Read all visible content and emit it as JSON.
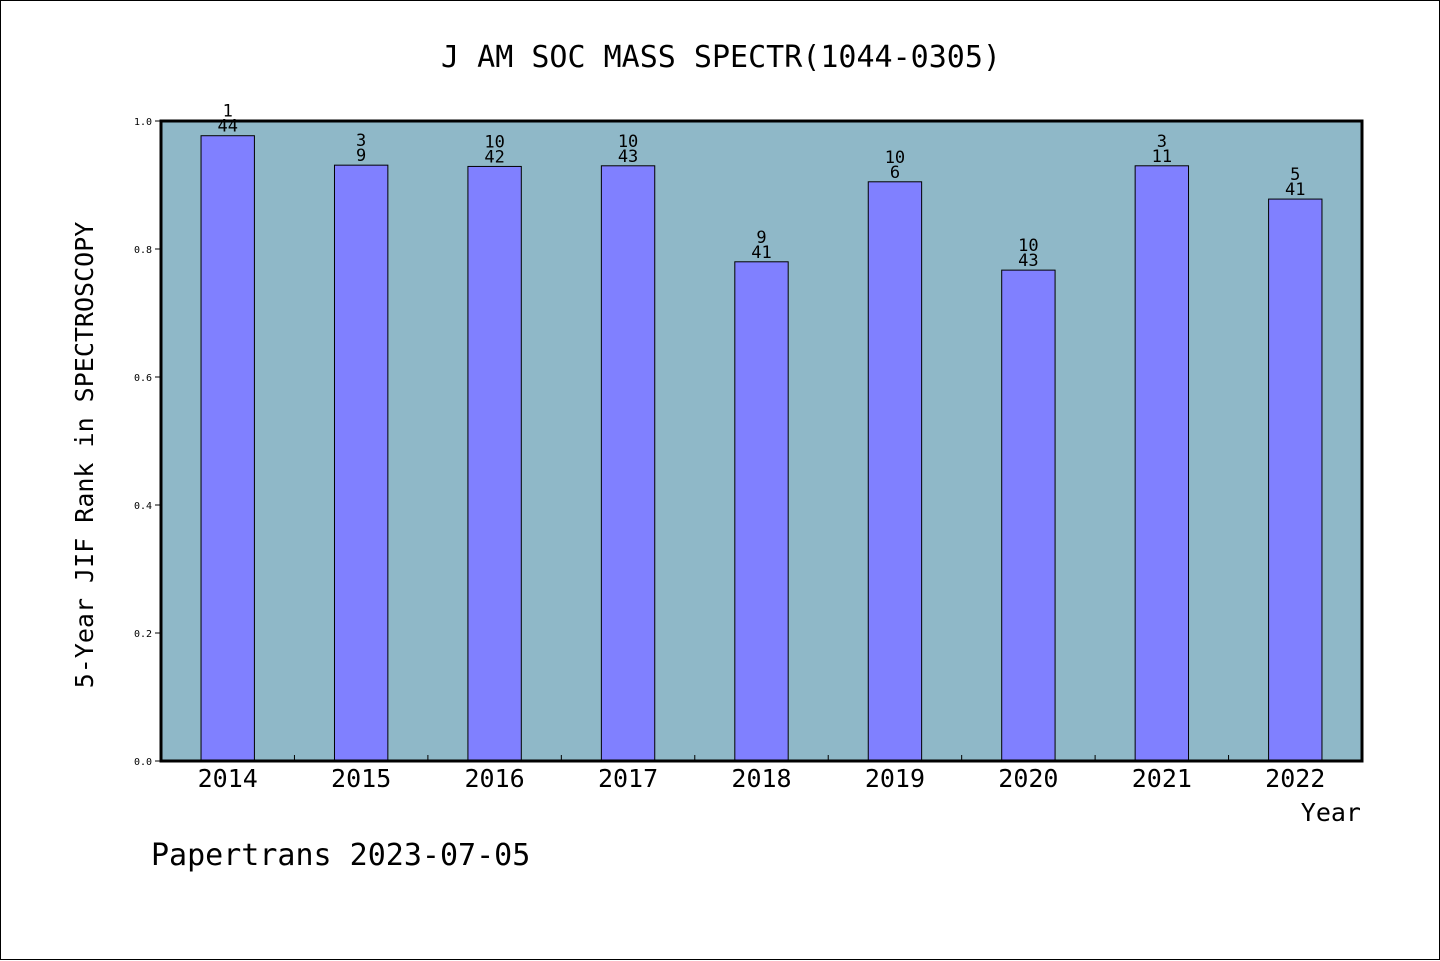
{
  "chart_data": {
    "type": "bar",
    "title": "J AM SOC MASS SPECTR(1044-0305)",
    "xlabel": "Year",
    "ylabel": "5-Year JIF Rank in SPECTROSCOPY",
    "footer": "Papertrans 2023-07-05",
    "categories": [
      "2014",
      "2015",
      "2016",
      "2017",
      "2018",
      "2019",
      "2020",
      "2021",
      "2022"
    ],
    "values": [
      0.977,
      0.931,
      0.929,
      0.93,
      0.78,
      0.905,
      0.767,
      0.93,
      0.878
    ],
    "rank_labels": [
      "1",
      "3",
      "10",
      "10",
      "9",
      "10",
      "10",
      "3",
      "5"
    ],
    "total_labels": [
      "44",
      "9",
      "42",
      "43",
      "41",
      "6",
      "43",
      "11",
      "41"
    ],
    "ylim": [
      0,
      1.0
    ],
    "yticks": [
      "0.0",
      "0.2",
      "0.4",
      "0.6",
      "0.8",
      "1.0"
    ],
    "grid": false,
    "colors": {
      "plot_background": "#8fb8c8",
      "bar_fill": "#8080ff",
      "bar_stroke": "#000000",
      "axis": "#000000"
    }
  }
}
